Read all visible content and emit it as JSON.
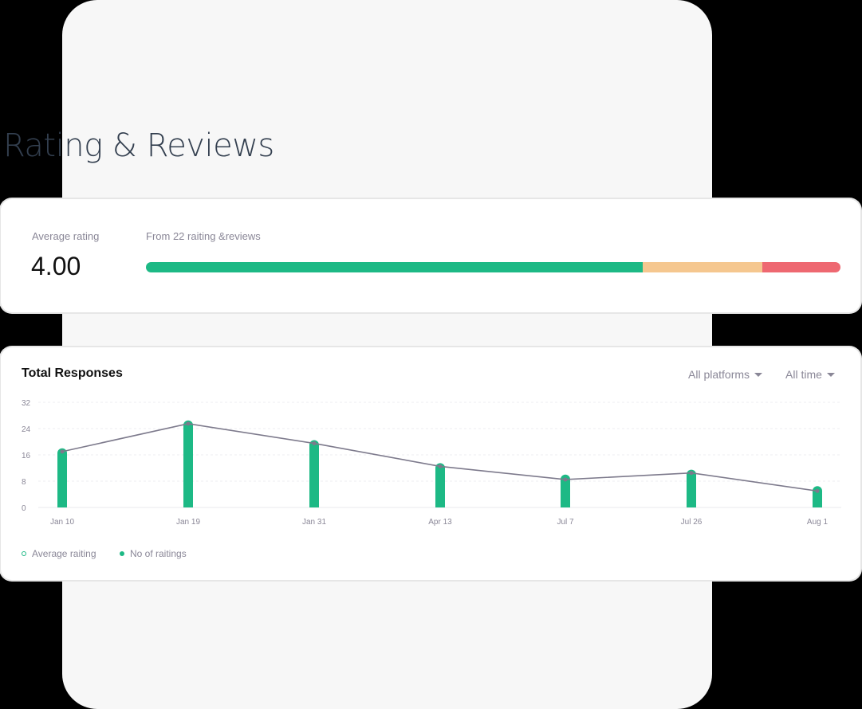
{
  "page": {
    "title": "Rating & Reviews"
  },
  "rating_card": {
    "avg_label": "Average rating",
    "avg_value": "4.00",
    "from_label": "From 22 raiting &reviews",
    "distribution": [
      {
        "name": "positive",
        "pct": 71.5,
        "color": "#1db985"
      },
      {
        "name": "neutral",
        "pct": 17.2,
        "color": "#f5c78f"
      },
      {
        "name": "negative",
        "pct": 11.3,
        "color": "#ee6871"
      }
    ]
  },
  "chart_card": {
    "title": "Total Responses",
    "filters": {
      "platform": "All platforms",
      "time": "All time"
    },
    "legend": [
      {
        "label": "Average raiting",
        "style": "hollow",
        "color": "#1db985"
      },
      {
        "label": "No of raitings",
        "style": "filled",
        "color": "#1db985"
      }
    ]
  },
  "chart_data": {
    "type": "bar",
    "title": "Total Responses",
    "xlabel": "",
    "ylabel": "",
    "ylim": [
      0,
      32
    ],
    "yticks": [
      0,
      8,
      16,
      24,
      32
    ],
    "grid": true,
    "legend_position": "bottom-left",
    "categories": [
      "Jan 10",
      "Jan 19",
      "Jan 31",
      "Apr 13",
      "Jul 7",
      "Jul 26",
      "Aug 1"
    ],
    "series": [
      {
        "name": "No of raitings",
        "type": "bar",
        "color": "#1db985",
        "values": [
          18,
          26.5,
          20.5,
          13.5,
          10,
          11.5,
          6.5
        ]
      },
      {
        "name": "Average raiting",
        "type": "line",
        "color": "#7d7a8c",
        "values": [
          17,
          25.5,
          19.5,
          12.5,
          8.5,
          10.5,
          5
        ]
      }
    ]
  }
}
